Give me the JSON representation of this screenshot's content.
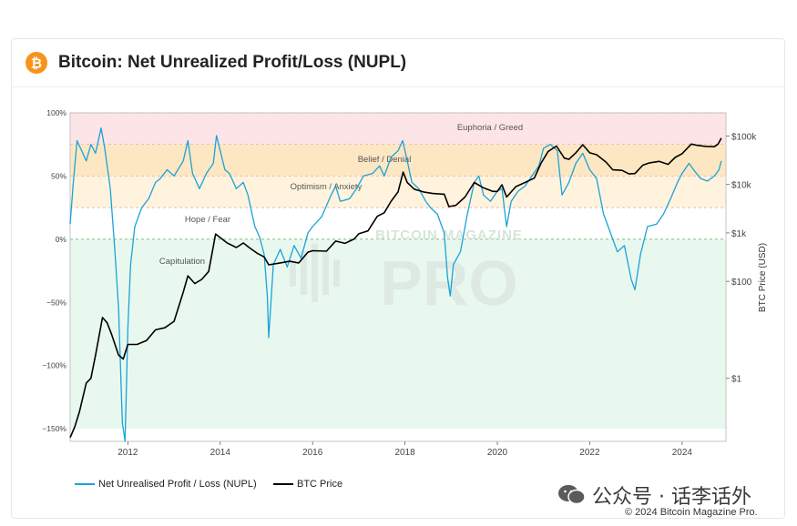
{
  "header": {
    "title": "Bitcoin: Net Unrealized Profit/Loss (NUPL)",
    "icon": "bitcoin-icon",
    "icon_color": "#f7931a"
  },
  "watermark": {
    "line1": "BITCOIN MAGAZINE",
    "line2": "PRO"
  },
  "zones": [
    {
      "label": "Euphoria / Greed",
      "from": 75,
      "to": 100,
      "color": "#fde4e6"
    },
    {
      "label": "Belief / Denial",
      "from": 50,
      "to": 75,
      "color": "#fde7c2"
    },
    {
      "label": "Optimism / Anxiety",
      "from": 25,
      "to": 50,
      "color": "#fff3dd"
    },
    {
      "label": "Hope / Fear",
      "from": 0,
      "to": 25,
      "color": "#ffffff"
    },
    {
      "label": "Capitulation",
      "from": -150,
      "to": 0,
      "color": "#e8f8ef"
    }
  ],
  "legend": {
    "nupl": "Net Unrealised Profit / Loss (NUPL)",
    "price": "BTC Price"
  },
  "footer": {
    "wechat": "公众号 · 话李话外",
    "copyright": "© 2024 Bitcoin Magazine Pro."
  },
  "chart_data": {
    "type": "line",
    "title": "Bitcoin: Net Unrealized Profit/Loss (NUPL)",
    "xlim": [
      2010.75,
      2024.95
    ],
    "x_ticks": [
      2012,
      2014,
      2016,
      2018,
      2020,
      2022,
      2024
    ],
    "y_left": {
      "label": "",
      "range": [
        -160,
        100
      ],
      "ticks": [
        100,
        50,
        0,
        -50,
        -100,
        -150
      ],
      "tick_labels": [
        "100%",
        "50%",
        "0%",
        "−50%",
        "−100%",
        "−150%"
      ]
    },
    "y_right": {
      "label": "BTC Price (USD)",
      "scale": "log",
      "range": [
        0.05,
        300000
      ],
      "ticks": [
        1,
        100,
        1000,
        10000,
        100000
      ],
      "tick_labels": [
        "$1",
        "$100",
        "$1k",
        "$10k",
        "$100k"
      ]
    },
    "legend_position": "bottom",
    "series": [
      {
        "name": "Net Unrealised Profit / Loss (NUPL)",
        "axis": "left",
        "color": "#1aa3d9",
        "points": [
          [
            2010.75,
            12
          ],
          [
            2010.82,
            45
          ],
          [
            2010.9,
            78
          ],
          [
            2011.0,
            70
          ],
          [
            2011.1,
            62
          ],
          [
            2011.2,
            75
          ],
          [
            2011.3,
            68
          ],
          [
            2011.42,
            88
          ],
          [
            2011.5,
            72
          ],
          [
            2011.62,
            40
          ],
          [
            2011.72,
            -10
          ],
          [
            2011.8,
            -55
          ],
          [
            2011.88,
            -145
          ],
          [
            2011.94,
            -160
          ],
          [
            2012.0,
            -70
          ],
          [
            2012.06,
            -20
          ],
          [
            2012.15,
            10
          ],
          [
            2012.3,
            25
          ],
          [
            2012.45,
            32
          ],
          [
            2012.6,
            45
          ],
          [
            2012.7,
            48
          ],
          [
            2012.85,
            55
          ],
          [
            2013.0,
            50
          ],
          [
            2013.2,
            62
          ],
          [
            2013.3,
            78
          ],
          [
            2013.4,
            52
          ],
          [
            2013.55,
            40
          ],
          [
            2013.7,
            52
          ],
          [
            2013.85,
            60
          ],
          [
            2013.92,
            82
          ],
          [
            2014.0,
            70
          ],
          [
            2014.1,
            55
          ],
          [
            2014.2,
            52
          ],
          [
            2014.35,
            40
          ],
          [
            2014.5,
            45
          ],
          [
            2014.6,
            35
          ],
          [
            2014.75,
            10
          ],
          [
            2014.85,
            2
          ],
          [
            2014.95,
            -12
          ],
          [
            2015.02,
            -45
          ],
          [
            2015.05,
            -78
          ],
          [
            2015.15,
            -20
          ],
          [
            2015.3,
            -8
          ],
          [
            2015.45,
            -22
          ],
          [
            2015.6,
            -5
          ],
          [
            2015.75,
            -15
          ],
          [
            2015.9,
            5
          ],
          [
            2016.0,
            10
          ],
          [
            2016.2,
            18
          ],
          [
            2016.4,
            35
          ],
          [
            2016.5,
            42
          ],
          [
            2016.6,
            30
          ],
          [
            2016.8,
            32
          ],
          [
            2016.95,
            40
          ],
          [
            2017.1,
            50
          ],
          [
            2017.3,
            52
          ],
          [
            2017.45,
            58
          ],
          [
            2017.55,
            50
          ],
          [
            2017.7,
            65
          ],
          [
            2017.85,
            70
          ],
          [
            2017.95,
            78
          ],
          [
            2018.05,
            62
          ],
          [
            2018.15,
            45
          ],
          [
            2018.3,
            40
          ],
          [
            2018.45,
            30
          ],
          [
            2018.55,
            25
          ],
          [
            2018.7,
            20
          ],
          [
            2018.85,
            5
          ],
          [
            2018.92,
            -30
          ],
          [
            2018.98,
            -45
          ],
          [
            2019.05,
            -20
          ],
          [
            2019.2,
            -10
          ],
          [
            2019.35,
            20
          ],
          [
            2019.5,
            45
          ],
          [
            2019.6,
            50
          ],
          [
            2019.7,
            35
          ],
          [
            2019.85,
            30
          ],
          [
            2020.0,
            38
          ],
          [
            2020.1,
            40
          ],
          [
            2020.2,
            10
          ],
          [
            2020.3,
            30
          ],
          [
            2020.45,
            38
          ],
          [
            2020.6,
            42
          ],
          [
            2020.75,
            50
          ],
          [
            2020.9,
            58
          ],
          [
            2021.0,
            72
          ],
          [
            2021.15,
            75
          ],
          [
            2021.3,
            70
          ],
          [
            2021.4,
            35
          ],
          [
            2021.55,
            45
          ],
          [
            2021.7,
            60
          ],
          [
            2021.85,
            68
          ],
          [
            2022.0,
            55
          ],
          [
            2022.15,
            48
          ],
          [
            2022.3,
            20
          ],
          [
            2022.45,
            5
          ],
          [
            2022.6,
            -10
          ],
          [
            2022.75,
            -5
          ],
          [
            2022.9,
            -32
          ],
          [
            2022.98,
            -40
          ],
          [
            2023.1,
            -12
          ],
          [
            2023.25,
            10
          ],
          [
            2023.45,
            12
          ],
          [
            2023.6,
            20
          ],
          [
            2023.75,
            32
          ],
          [
            2023.9,
            45
          ],
          [
            2024.0,
            52
          ],
          [
            2024.15,
            60
          ],
          [
            2024.25,
            55
          ],
          [
            2024.4,
            48
          ],
          [
            2024.55,
            46
          ],
          [
            2024.7,
            50
          ],
          [
            2024.8,
            55
          ],
          [
            2024.85,
            62
          ]
        ]
      },
      {
        "name": "BTC Price",
        "axis": "right",
        "color": "#000000",
        "points": [
          [
            2010.75,
            0.06
          ],
          [
            2010.85,
            0.1
          ],
          [
            2010.95,
            0.2
          ],
          [
            2011.1,
            0.8
          ],
          [
            2011.2,
            1.0
          ],
          [
            2011.3,
            3.0
          ],
          [
            2011.45,
            18
          ],
          [
            2011.55,
            14
          ],
          [
            2011.65,
            8
          ],
          [
            2011.8,
            3.0
          ],
          [
            2011.9,
            2.5
          ],
          [
            2012.0,
            5
          ],
          [
            2012.2,
            5
          ],
          [
            2012.4,
            6
          ],
          [
            2012.6,
            10
          ],
          [
            2012.8,
            11
          ],
          [
            2013.0,
            15
          ],
          [
            2013.2,
            60
          ],
          [
            2013.3,
            130
          ],
          [
            2013.45,
            90
          ],
          [
            2013.6,
            110
          ],
          [
            2013.75,
            160
          ],
          [
            2013.9,
            950
          ],
          [
            2014.0,
            800
          ],
          [
            2014.15,
            620
          ],
          [
            2014.35,
            500
          ],
          [
            2014.5,
            620
          ],
          [
            2014.65,
            480
          ],
          [
            2014.8,
            380
          ],
          [
            2014.95,
            320
          ],
          [
            2015.05,
            220
          ],
          [
            2015.3,
            240
          ],
          [
            2015.5,
            260
          ],
          [
            2015.7,
            240
          ],
          [
            2015.9,
            400
          ],
          [
            2016.0,
            430
          ],
          [
            2016.3,
            420
          ],
          [
            2016.5,
            680
          ],
          [
            2016.7,
            610
          ],
          [
            2016.9,
            750
          ],
          [
            2017.0,
            960
          ],
          [
            2017.2,
            1100
          ],
          [
            2017.4,
            2200
          ],
          [
            2017.55,
            2600
          ],
          [
            2017.7,
            4500
          ],
          [
            2017.85,
            7000
          ],
          [
            2017.96,
            18000
          ],
          [
            2018.05,
            11000
          ],
          [
            2018.2,
            8000
          ],
          [
            2018.4,
            7000
          ],
          [
            2018.6,
            6500
          ],
          [
            2018.85,
            6300
          ],
          [
            2018.95,
            3500
          ],
          [
            2019.1,
            3700
          ],
          [
            2019.3,
            5500
          ],
          [
            2019.5,
            11000
          ],
          [
            2019.7,
            8500
          ],
          [
            2019.9,
            7200
          ],
          [
            2020.0,
            7200
          ],
          [
            2020.1,
            9800
          ],
          [
            2020.2,
            5500
          ],
          [
            2020.4,
            9000
          ],
          [
            2020.6,
            11000
          ],
          [
            2020.8,
            13500
          ],
          [
            2020.95,
            28000
          ],
          [
            2021.1,
            48000
          ],
          [
            2021.28,
            62000
          ],
          [
            2021.45,
            35000
          ],
          [
            2021.55,
            33000
          ],
          [
            2021.7,
            45000
          ],
          [
            2021.85,
            66000
          ],
          [
            2022.0,
            45000
          ],
          [
            2022.15,
            41000
          ],
          [
            2022.35,
            29000
          ],
          [
            2022.5,
            20000
          ],
          [
            2022.7,
            19500
          ],
          [
            2022.85,
            16500
          ],
          [
            2022.98,
            16800
          ],
          [
            2023.15,
            25000
          ],
          [
            2023.3,
            28000
          ],
          [
            2023.5,
            30000
          ],
          [
            2023.7,
            26000
          ],
          [
            2023.85,
            36000
          ],
          [
            2024.0,
            43000
          ],
          [
            2024.2,
            68000
          ],
          [
            2024.3,
            65000
          ],
          [
            2024.5,
            61000
          ],
          [
            2024.7,
            60000
          ],
          [
            2024.78,
            68000
          ],
          [
            2024.85,
            90000
          ]
        ]
      }
    ]
  }
}
